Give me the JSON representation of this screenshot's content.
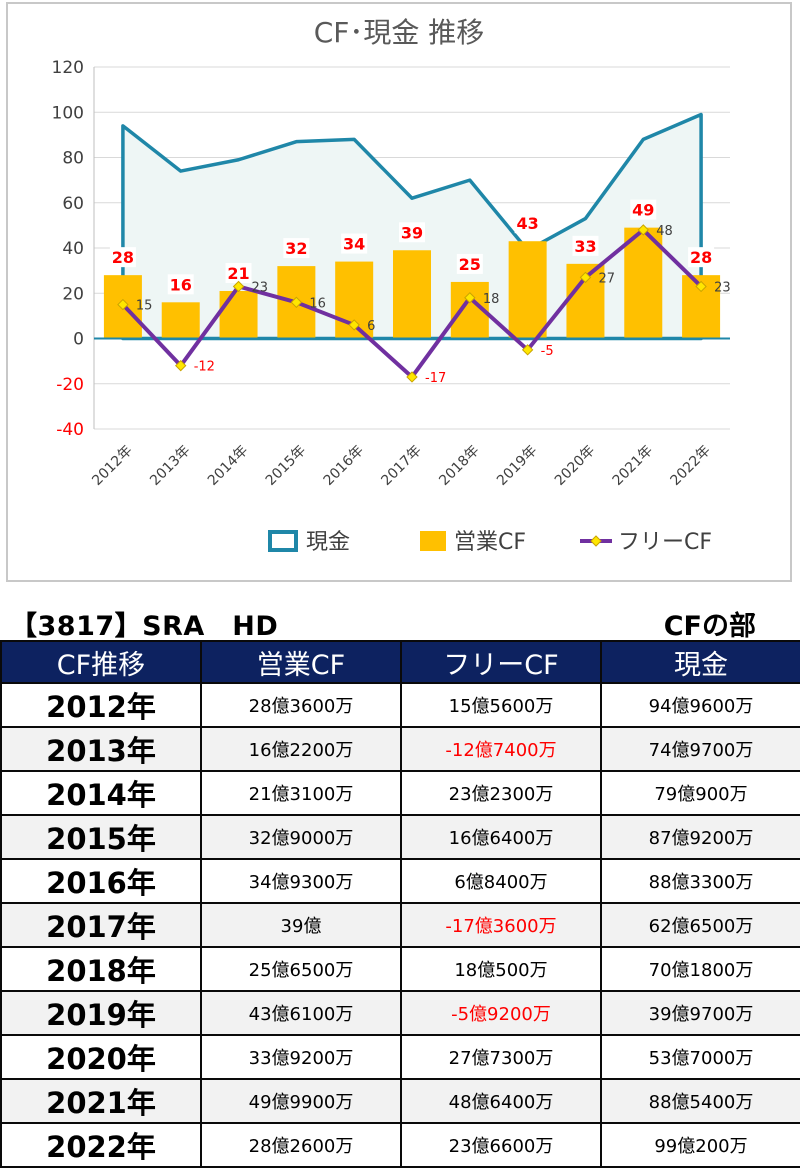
{
  "chart_data": {
    "type": "bar+line",
    "title": "CF･現金 推移",
    "categories": [
      "2012年",
      "2013年",
      "2014年",
      "2015年",
      "2016年",
      "2017年",
      "2018年",
      "2019年",
      "2020年",
      "2021年",
      "2022年"
    ],
    "series": [
      {
        "name": "現金",
        "kind": "area",
        "color": "#1f87a8",
        "values": [
          94,
          74,
          79,
          87,
          88,
          62,
          70,
          39,
          53,
          88,
          99
        ]
      },
      {
        "name": "営業CF",
        "kind": "bar",
        "color": "#ffc000",
        "values": [
          28,
          16,
          21,
          32,
          34,
          39,
          25,
          43,
          33,
          49,
          28
        ]
      },
      {
        "name": "フリーCF",
        "kind": "line",
        "color": "#7030a0",
        "values": [
          15,
          -12,
          23,
          16,
          6,
          -17,
          18,
          -5,
          27,
          48,
          23
        ]
      }
    ],
    "ylim": [
      -40,
      120
    ],
    "yticks": [
      -40,
      -20,
      0,
      20,
      40,
      60,
      80,
      100,
      120
    ],
    "legend": "bottom"
  },
  "header": {
    "company": "【3817】SRA　HD",
    "section": "CFの部"
  },
  "table": {
    "columns": [
      "CF推移",
      "営業CF",
      "フリーCF",
      "現金"
    ],
    "rows": [
      {
        "year": "2012年",
        "op": "28億3600万",
        "free": "15億5600万",
        "cash": "94億9600万",
        "neg": false
      },
      {
        "year": "2013年",
        "op": "16億2200万",
        "free": "-12億7400万",
        "cash": "74億9700万",
        "neg": true
      },
      {
        "year": "2014年",
        "op": "21億3100万",
        "free": "23億2300万",
        "cash": "79億900万",
        "neg": false
      },
      {
        "year": "2015年",
        "op": "32億9000万",
        "free": "16億6400万",
        "cash": "87億9200万",
        "neg": false
      },
      {
        "year": "2016年",
        "op": "34億9300万",
        "free": "6億8400万",
        "cash": "88億3300万",
        "neg": false
      },
      {
        "year": "2017年",
        "op": "39億",
        "free": "-17億3600万",
        "cash": "62億6500万",
        "neg": true
      },
      {
        "year": "2018年",
        "op": "25億6500万",
        "free": "18億500万",
        "cash": "70億1800万",
        "neg": false
      },
      {
        "year": "2019年",
        "op": "43億6100万",
        "free": "-5億9200万",
        "cash": "39億9700万",
        "neg": true
      },
      {
        "year": "2020年",
        "op": "33億9200万",
        "free": "27億7300万",
        "cash": "53億7000万",
        "neg": false
      },
      {
        "year": "2021年",
        "op": "49億9900万",
        "free": "48億6400万",
        "cash": "88億5400万",
        "neg": false
      },
      {
        "year": "2022年",
        "op": "28億2600万",
        "free": "23億6600万",
        "cash": "99億200万",
        "neg": false
      }
    ]
  }
}
